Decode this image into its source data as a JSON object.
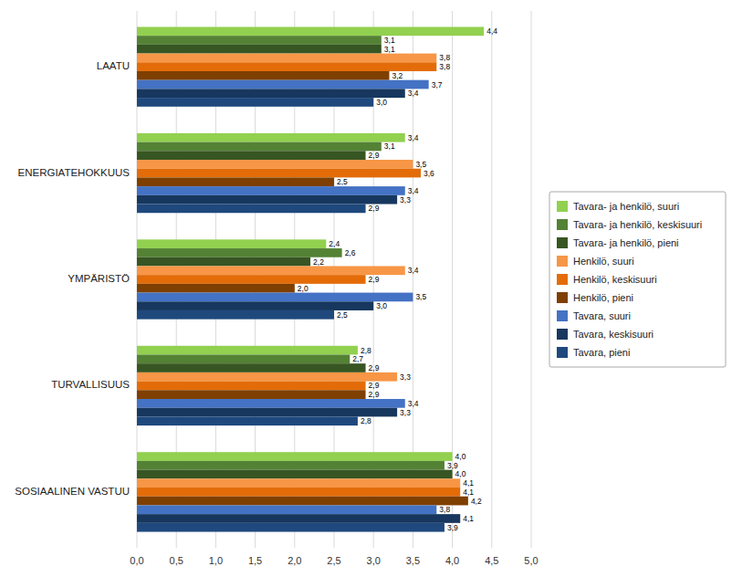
{
  "chart_data": {
    "type": "bar",
    "orientation": "horizontal",
    "categories": [
      "SOSIAALINEN VASTUU",
      "TURVALLISUUS",
      "YMPÄRISTÖ",
      "ENERGIATEHOKKUUS",
      "LAATU"
    ],
    "series": [
      {
        "name": "Tavara- ja henkilö, suuri",
        "color": "#92d050",
        "values": [
          4.0,
          2.8,
          2.4,
          3.4,
          4.4
        ],
        "value_labels": [
          "4,0",
          "2,8",
          "2,4",
          "3,4",
          "4,4"
        ]
      },
      {
        "name": "Tavara- ja henkilö, keskisuuri",
        "color": "#548235",
        "values": [
          3.9,
          2.7,
          2.6,
          3.1,
          3.1
        ],
        "value_labels": [
          "3,9",
          "2,7",
          "2,6",
          "3,1",
          "3,1"
        ]
      },
      {
        "name": "Tavara- ja henkilö, pieni",
        "color": "#375623",
        "values": [
          4.0,
          2.9,
          2.2,
          2.9,
          3.1
        ],
        "value_labels": [
          "4,0",
          "2,9",
          "2,2",
          "2,9",
          "3,1"
        ]
      },
      {
        "name": "Henkilö, suuri",
        "color": "#f79646",
        "values": [
          4.1,
          3.3,
          3.4,
          3.5,
          3.8
        ],
        "value_labels": [
          "4,1",
          "3,3",
          "3,4",
          "3,5",
          "3,8"
        ]
      },
      {
        "name": "Henkilö, keskisuuri",
        "color": "#e36c09",
        "values": [
          4.1,
          2.9,
          2.9,
          3.6,
          3.8
        ],
        "value_labels": [
          "4,1",
          "2,9",
          "2,9",
          "3,6",
          "3,8"
        ]
      },
      {
        "name": "Henkilö, pieni",
        "color": "#7f3f00",
        "values": [
          4.2,
          2.9,
          2.0,
          2.5,
          3.2
        ],
        "value_labels": [
          "4,2",
          "2,9",
          "2,0",
          "2,5",
          "3,2"
        ]
      },
      {
        "name": "Tavara, suuri",
        "color": "#4472c4",
        "values": [
          3.8,
          3.4,
          3.5,
          3.4,
          3.7
        ],
        "value_labels": [
          "3,8",
          "3,4",
          "3,5",
          "3,4",
          "3,7"
        ]
      },
      {
        "name": "Tavara, keskisuuri",
        "color": "#17375e",
        "values": [
          4.1,
          3.3,
          3.0,
          3.3,
          3.4
        ],
        "value_labels": [
          "4,1",
          "3,3",
          "3,0",
          "3,3",
          "3,4"
        ]
      },
      {
        "name": "Tavara, pieni",
        "color": "#1f497d",
        "values": [
          3.9,
          2.8,
          2.5,
          2.9,
          3.0
        ],
        "value_labels": [
          "3,9",
          "2,8",
          "2,5",
          "2,9",
          "3,0"
        ]
      }
    ],
    "xlim": [
      0,
      5.0
    ],
    "xticks": [
      {
        "value": 0.0,
        "label": "0,0"
      },
      {
        "value": 0.5,
        "label": "0,5"
      },
      {
        "value": 1.0,
        "label": "1,0"
      },
      {
        "value": 1.5,
        "label": "1,5"
      },
      {
        "value": 2.0,
        "label": "2,0"
      },
      {
        "value": 2.5,
        "label": "2,5"
      },
      {
        "value": 3.0,
        "label": "3,0"
      },
      {
        "value": 3.5,
        "label": "3,5"
      },
      {
        "value": 4.0,
        "label": "4,0"
      },
      {
        "value": 4.5,
        "label": "4,5"
      },
      {
        "value": 5.0,
        "label": "5,0"
      }
    ],
    "grid": true,
    "data_labels": true,
    "legend": "right"
  }
}
